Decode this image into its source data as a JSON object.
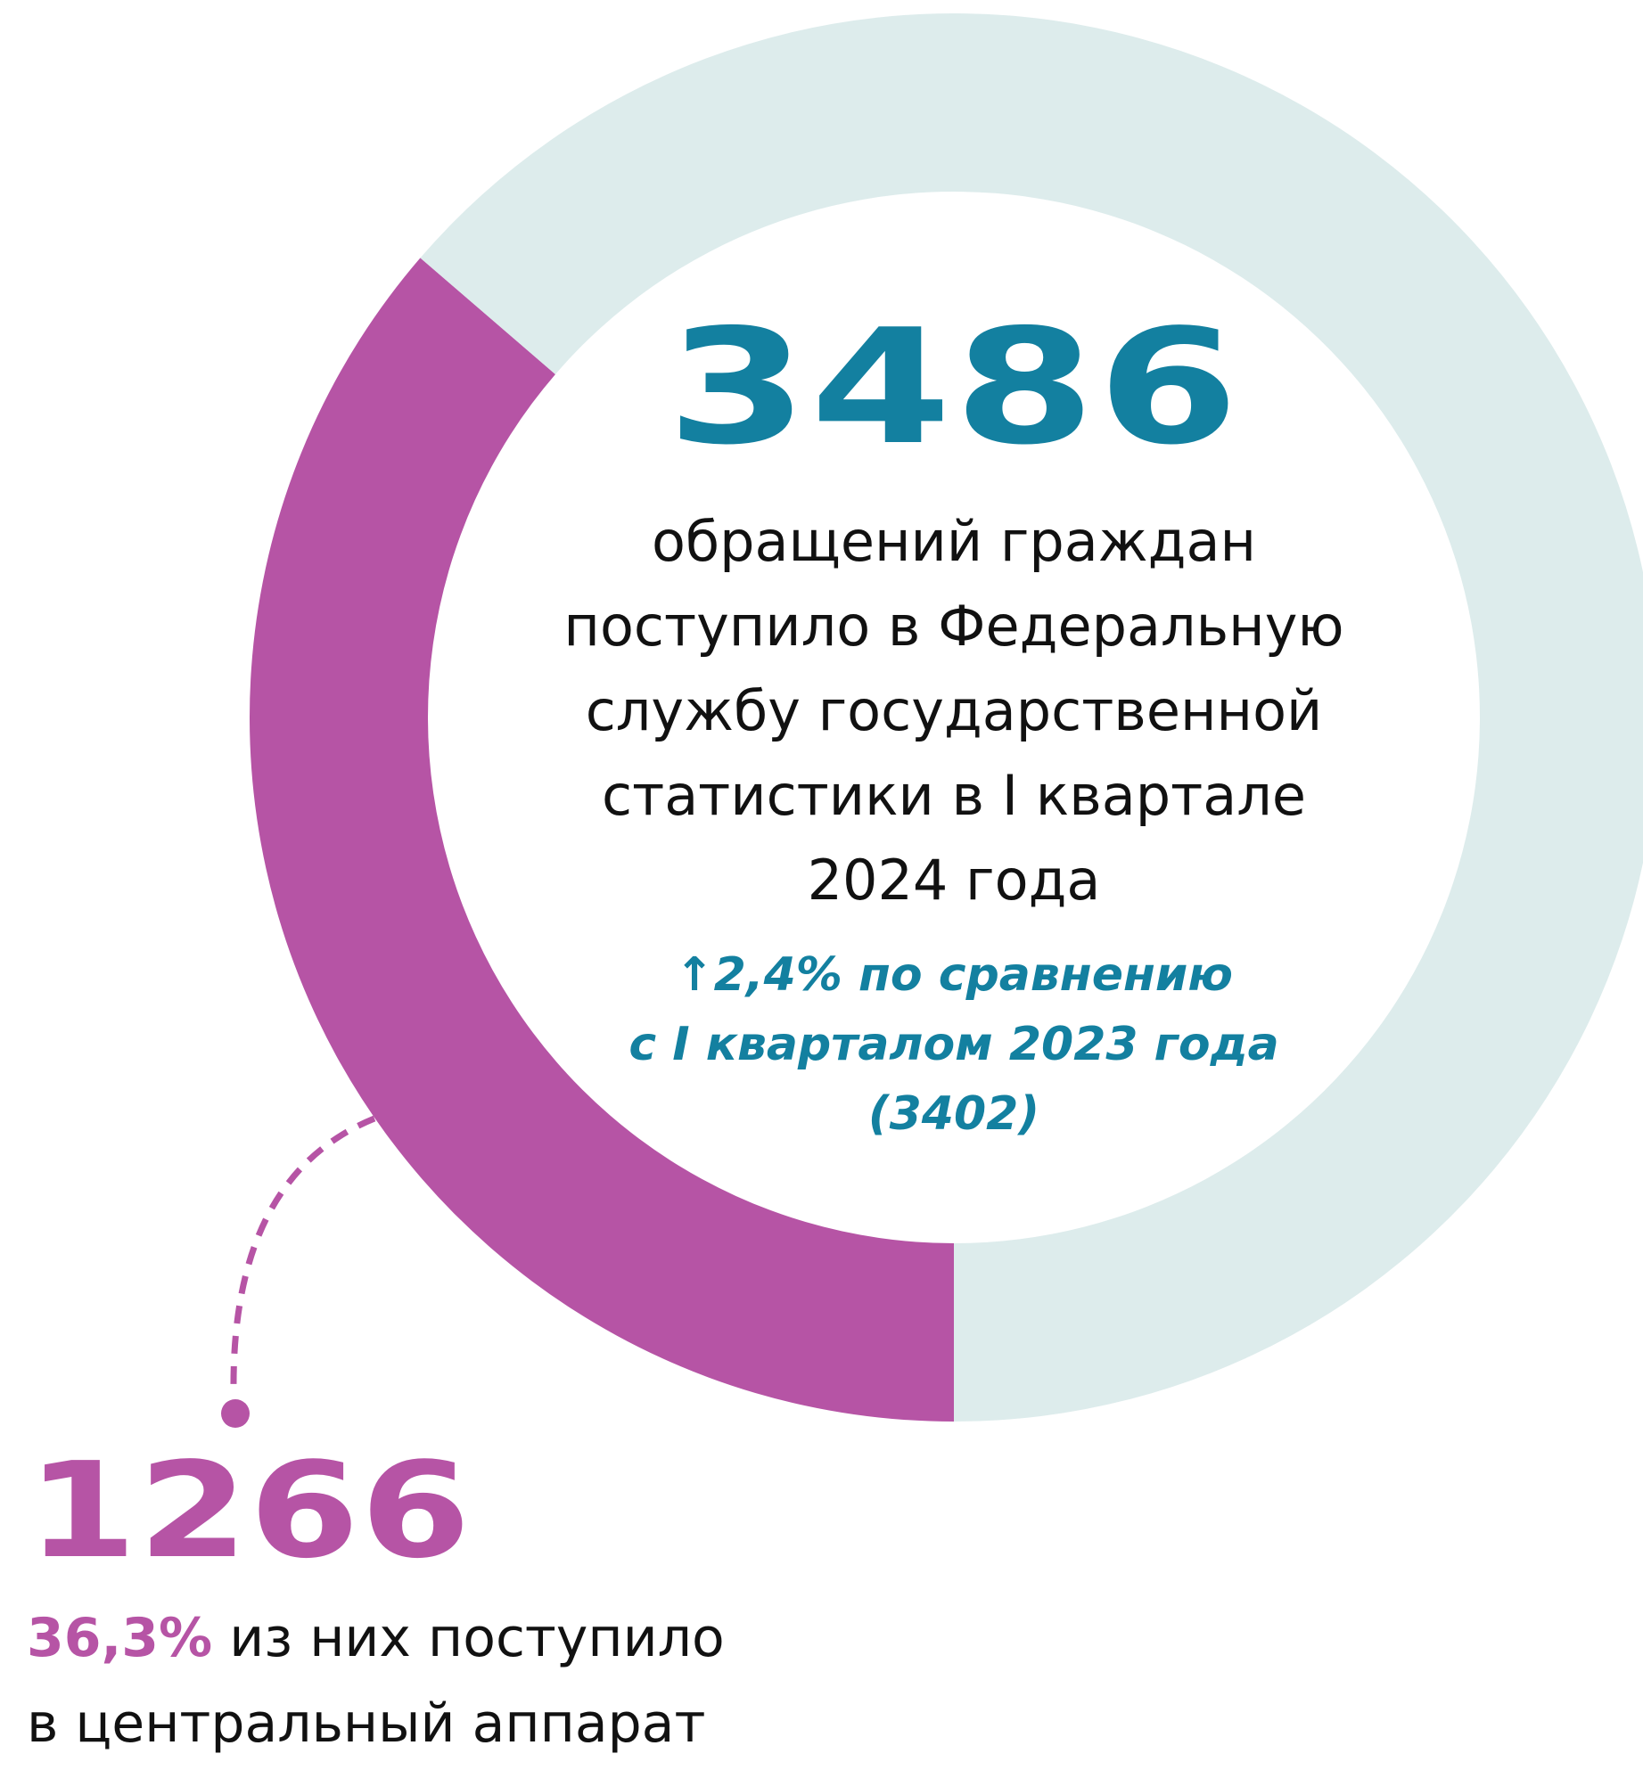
{
  "chart_data": {
    "type": "pie",
    "slices": [
      {
        "label": "в центральный аппарат",
        "value": 1266,
        "color": "#b654a5"
      },
      {
        "label": "",
        "value": 2220,
        "color": "#ddecec"
      }
    ],
    "total": 3486,
    "share_percent": 36.3
  },
  "total": {
    "value": "3486",
    "caption_lines": [
      "обращений граждан",
      "поступило в Федеральную",
      "службу государственной",
      "статистики в I квартале",
      "2024 года"
    ]
  },
  "comparison": {
    "lines": [
      "↑2,4% по сравнению",
      "с I кварталом 2023 года",
      "(3402)"
    ]
  },
  "part": {
    "value": "1266",
    "percent": "36,3%",
    "line1_rest": " из них поступило",
    "line2": "в центральный аппарат"
  },
  "colors": {
    "accent_teal": "#1380a0",
    "accent_magenta": "#b654a5",
    "ring_bg": "#ddecec"
  }
}
